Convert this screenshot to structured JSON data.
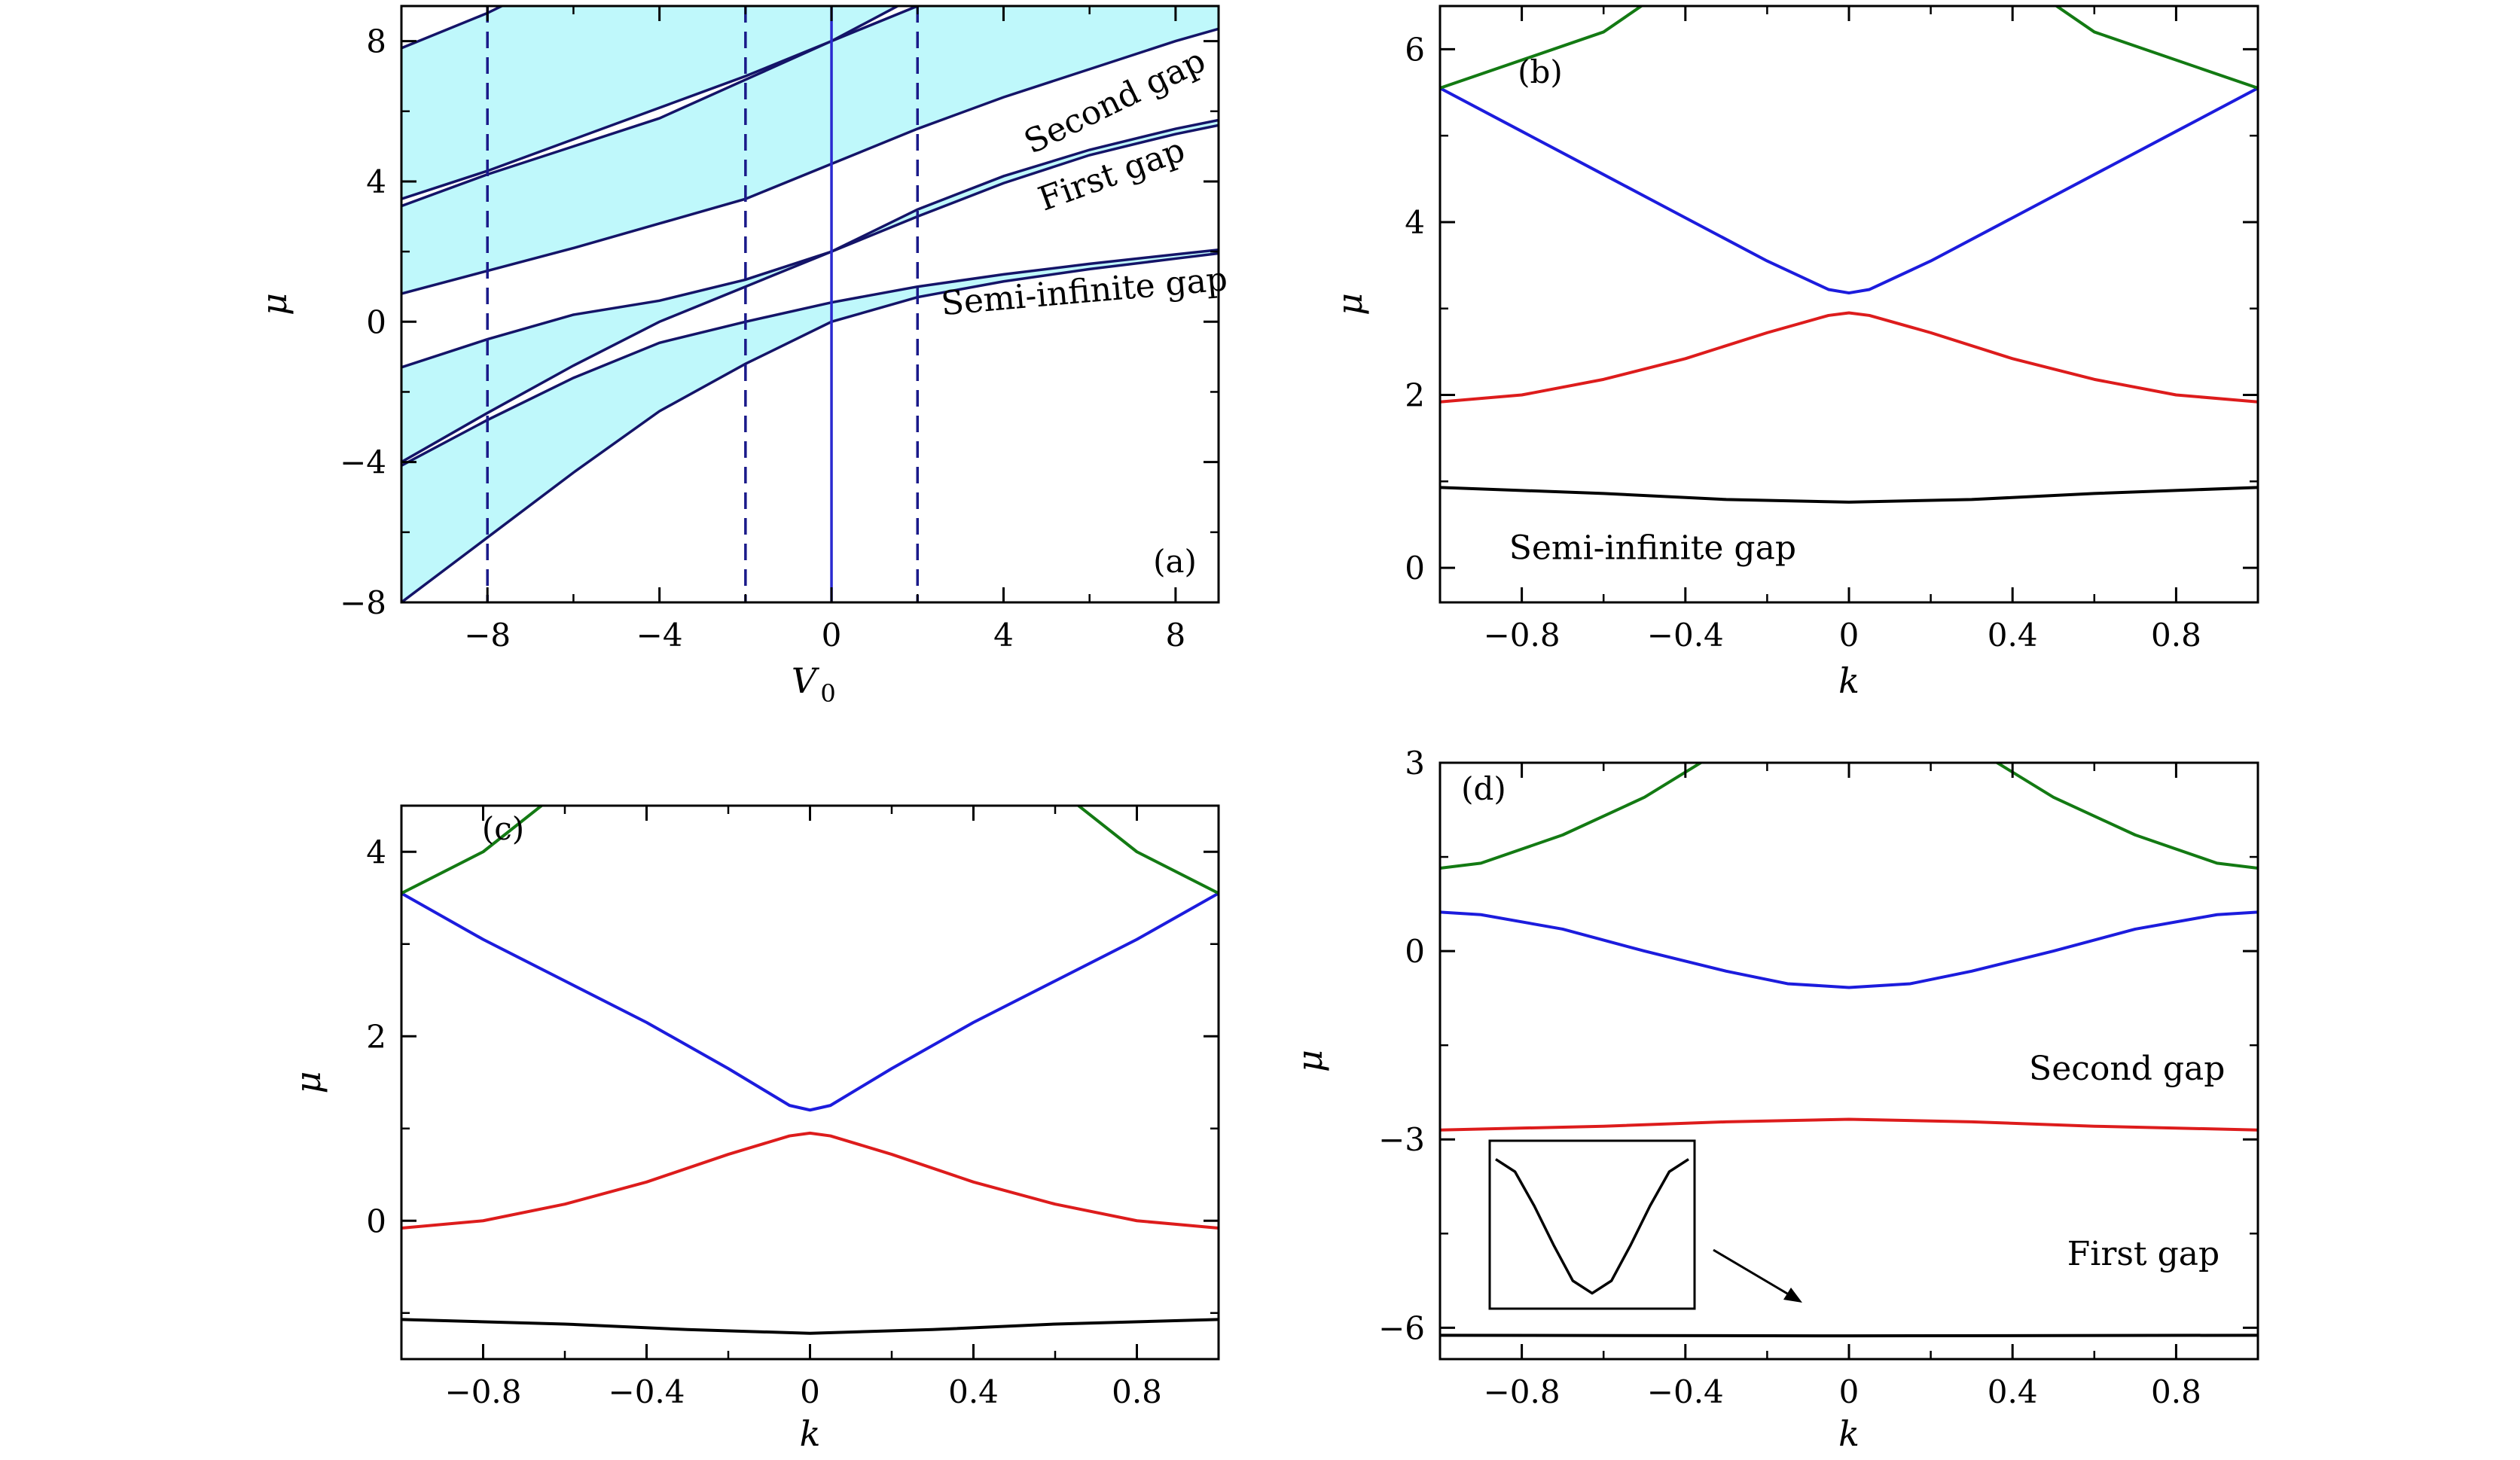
{
  "chart_data": [
    {
      "type": "line",
      "panel_label": "(a)",
      "xlabel_main": "V",
      "xlabel_sub": "0",
      "ylabel": "μ",
      "xlim": [
        -10,
        9
      ],
      "ylim": [
        -8,
        9
      ],
      "xticks": [
        -8,
        -4,
        0,
        4,
        8
      ],
      "yticks": [
        -8,
        -4,
        0,
        4,
        8
      ],
      "xtick_labels": [
        "−8",
        "−4",
        "0",
        "4",
        "8"
      ],
      "ytick_labels": [
        "−8",
        "−4",
        "0",
        "4",
        "8"
      ],
      "band_fill_color": "#bff8fb",
      "band_line_color": "#141468",
      "vertical_lines": [
        {
          "x": -8,
          "style": "dashed"
        },
        {
          "x": -2,
          "style": "dashed"
        },
        {
          "x": 0,
          "style": "solid"
        },
        {
          "x": 2,
          "style": "dashed"
        }
      ],
      "bands": [
        {
          "x": [
            -10,
            -8,
            -6,
            -4,
            -2,
            0,
            2,
            4,
            6,
            8,
            9
          ],
          "lower": [
            -8.0,
            -6.15,
            -4.3,
            -2.55,
            -1.2,
            0.0,
            0.7,
            1.15,
            1.5,
            1.8,
            1.95
          ],
          "upper": [
            -4.1,
            -2.8,
            -1.6,
            -0.6,
            0.0,
            0.55,
            1.0,
            1.35,
            1.65,
            1.92,
            2.05
          ]
        },
        {
          "x": [
            -10,
            -8,
            -6,
            -4,
            -2,
            0,
            2,
            4,
            6,
            8,
            9
          ],
          "lower": [
            -4.0,
            -2.6,
            -1.25,
            0.0,
            1.0,
            2.0,
            3.0,
            3.95,
            4.75,
            5.35,
            5.6
          ],
          "upper": [
            -1.3,
            -0.5,
            0.2,
            0.6,
            1.2,
            2.0,
            3.2,
            4.15,
            4.9,
            5.5,
            5.75
          ]
        },
        {
          "x": [
            -10,
            -8,
            -6,
            -4,
            -2,
            0,
            2,
            4,
            6,
            8,
            9
          ],
          "lower": [
            0.8,
            1.45,
            2.1,
            2.8,
            3.5,
            4.5,
            5.5,
            6.4,
            7.2,
            8.0,
            8.35
          ],
          "upper": [
            3.3,
            4.2,
            5.0,
            5.8,
            6.9,
            8.0,
            9.0,
            9.6,
            9.8,
            10.0,
            10.0
          ]
        },
        {
          "x": [
            -10,
            -8,
            -6,
            -4,
            -2,
            0,
            2,
            4,
            6,
            8,
            9
          ],
          "lower": [
            3.5,
            4.3,
            5.2,
            6.1,
            7.0,
            8.0,
            9.3,
            9.8,
            10.0,
            10.0,
            10.0
          ],
          "upper": [
            7.8,
            8.8,
            10.0,
            10.0,
            10.0,
            10.0,
            10.0,
            10.0,
            10.0,
            10.0,
            10.0
          ]
        }
      ],
      "annotations": [
        {
          "text": "Second gap",
          "x": 6.7,
          "y": 6.0,
          "angle": -26
        },
        {
          "text": "First gap",
          "x": 6.6,
          "y": 3.9,
          "angle": -20
        },
        {
          "text": "Semi-infinite gap",
          "x": 5.9,
          "y": 0.55,
          "angle": -5
        }
      ]
    },
    {
      "type": "line",
      "panel_label": "(b)",
      "xlabel": "k",
      "ylabel": "μ",
      "xlim": [
        -1,
        1
      ],
      "ylim": [
        -0.4,
        6.5
      ],
      "xticks": [
        -0.8,
        -0.4,
        0,
        0.4,
        0.8
      ],
      "yticks": [
        0,
        2,
        4,
        6
      ],
      "xtick_labels": [
        "−0.8",
        "−0.4",
        "0",
        "0.4",
        "0.8"
      ],
      "ytick_labels": [
        "0",
        "2",
        "4",
        "6"
      ],
      "series": [
        {
          "color": "#000000",
          "x": [
            -1,
            -0.6,
            -0.3,
            0,
            0.3,
            0.6,
            1
          ],
          "values": [
            0.93,
            0.86,
            0.79,
            0.76,
            0.79,
            0.86,
            0.93
          ]
        },
        {
          "color": "#dd1c1c",
          "x": [
            -1,
            -0.8,
            -0.6,
            -0.4,
            -0.2,
            -0.05,
            0,
            0.05,
            0.2,
            0.4,
            0.6,
            0.8,
            1
          ],
          "values": [
            1.92,
            2.0,
            2.18,
            2.42,
            2.72,
            2.92,
            2.95,
            2.92,
            2.72,
            2.42,
            2.18,
            2.0,
            1.92
          ]
        },
        {
          "color": "#1c1cdd",
          "x": [
            -1,
            -0.8,
            -0.6,
            -0.4,
            -0.2,
            -0.05,
            0,
            0.05,
            0.2,
            0.4,
            0.6,
            0.8,
            1
          ],
          "values": [
            5.55,
            5.05,
            4.55,
            4.05,
            3.55,
            3.22,
            3.18,
            3.22,
            3.55,
            4.05,
            4.55,
            5.05,
            5.55
          ]
        },
        {
          "color": "#137a13",
          "x": [
            -1,
            -0.6,
            -0.4
          ],
          "values": [
            5.55,
            6.2,
            6.85
          ]
        },
        {
          "color": "#137a13",
          "x": [
            0.4,
            0.6,
            1
          ],
          "values": [
            6.85,
            6.2,
            5.55
          ]
        }
      ],
      "annotations": [
        {
          "text": "Semi-infinite gap",
          "x": -0.48,
          "y": 0.1
        }
      ]
    },
    {
      "type": "line",
      "panel_label": "(c)",
      "xlabel": "k",
      "ylabel": "μ",
      "xlim": [
        -1,
        1
      ],
      "ylim": [
        -1.5,
        4.5
      ],
      "xticks": [
        -0.8,
        -0.4,
        0,
        0.4,
        0.8
      ],
      "yticks": [
        0,
        2,
        4
      ],
      "xtick_labels": [
        "−0.8",
        "−0.4",
        "0",
        "0.4",
        "0.8"
      ],
      "ytick_labels": [
        "0",
        "2",
        "4"
      ],
      "series": [
        {
          "color": "#000000",
          "x": [
            -1,
            -0.6,
            -0.3,
            0,
            0.3,
            0.6,
            1
          ],
          "values": [
            -1.07,
            -1.12,
            -1.18,
            -1.22,
            -1.18,
            -1.12,
            -1.07
          ]
        },
        {
          "color": "#dd1c1c",
          "x": [
            -1,
            -0.8,
            -0.6,
            -0.4,
            -0.2,
            -0.05,
            0,
            0.05,
            0.2,
            0.4,
            0.6,
            0.8,
            1
          ],
          "values": [
            -0.08,
            0.0,
            0.18,
            0.42,
            0.72,
            0.92,
            0.95,
            0.92,
            0.72,
            0.42,
            0.18,
            0.0,
            -0.08
          ]
        },
        {
          "color": "#1c1cdd",
          "x": [
            -1,
            -0.8,
            -0.6,
            -0.4,
            -0.2,
            -0.05,
            0,
            0.05,
            0.2,
            0.4,
            0.6,
            0.8,
            1
          ],
          "values": [
            3.55,
            3.05,
            2.6,
            2.15,
            1.65,
            1.25,
            1.2,
            1.25,
            1.65,
            2.15,
            2.6,
            3.05,
            3.55
          ]
        },
        {
          "color": "#137a13",
          "x": [
            -1,
            -0.8,
            -0.6
          ],
          "values": [
            3.55,
            4.0,
            4.7
          ]
        },
        {
          "color": "#137a13",
          "x": [
            0.6,
            0.8,
            1
          ],
          "values": [
            4.7,
            4.0,
            3.55
          ]
        }
      ]
    },
    {
      "type": "line",
      "panel_label": "(d)",
      "xlabel": "k",
      "ylabel": "μ",
      "xlim": [
        -1,
        1
      ],
      "ylim": [
        -6.5,
        3
      ],
      "xticks": [
        -0.8,
        -0.4,
        0,
        0.4,
        0.8
      ],
      "yticks": [
        -6,
        -3,
        0,
        3
      ],
      "xtick_labels": [
        "−0.8",
        "−0.4",
        "0",
        "0.4",
        "0.8"
      ],
      "ytick_labels": [
        "−6",
        "−3",
        "0",
        "3"
      ],
      "series": [
        {
          "color": "#000000",
          "x": [
            -1,
            0,
            1
          ],
          "values": [
            -6.12,
            -6.13,
            -6.12
          ]
        },
        {
          "color": "#dd1c1c",
          "x": [
            -1,
            -0.6,
            -0.3,
            0,
            0.3,
            0.6,
            1
          ],
          "values": [
            -2.85,
            -2.79,
            -2.72,
            -2.68,
            -2.72,
            -2.79,
            -2.85
          ]
        },
        {
          "color": "#1c1cdd",
          "x": [
            -1,
            -0.9,
            -0.7,
            -0.5,
            -0.3,
            -0.15,
            0,
            0.15,
            0.3,
            0.5,
            0.7,
            0.9,
            1
          ],
          "values": [
            0.62,
            0.58,
            0.35,
            0.0,
            -0.32,
            -0.52,
            -0.58,
            -0.52,
            -0.32,
            0.0,
            0.35,
            0.58,
            0.62
          ]
        },
        {
          "color": "#137a13",
          "x": [
            -1,
            -0.9,
            -0.7,
            -0.5,
            -0.35
          ],
          "values": [
            1.32,
            1.4,
            1.85,
            2.45,
            3.05
          ]
        },
        {
          "color": "#137a13",
          "x": [
            0.35,
            0.5,
            0.7,
            0.9,
            1
          ],
          "values": [
            3.05,
            2.45,
            1.85,
            1.4,
            1.32
          ]
        }
      ],
      "annotations": [
        {
          "text": "Second gap",
          "x": 0.68,
          "y": -2.05
        },
        {
          "text": "First gap",
          "x": 0.72,
          "y": -5.0
        }
      ],
      "inset": {
        "xlim": [
          0,
          1
        ],
        "ylim": [
          0,
          1
        ],
        "x": [
          0,
          0.1,
          0.2,
          0.3,
          0.4,
          0.5,
          0.6,
          0.7,
          0.8,
          0.9,
          1
        ],
        "values": [
          0.92,
          0.84,
          0.62,
          0.37,
          0.14,
          0.06,
          0.14,
          0.37,
          0.62,
          0.84,
          0.92
        ]
      }
    }
  ]
}
